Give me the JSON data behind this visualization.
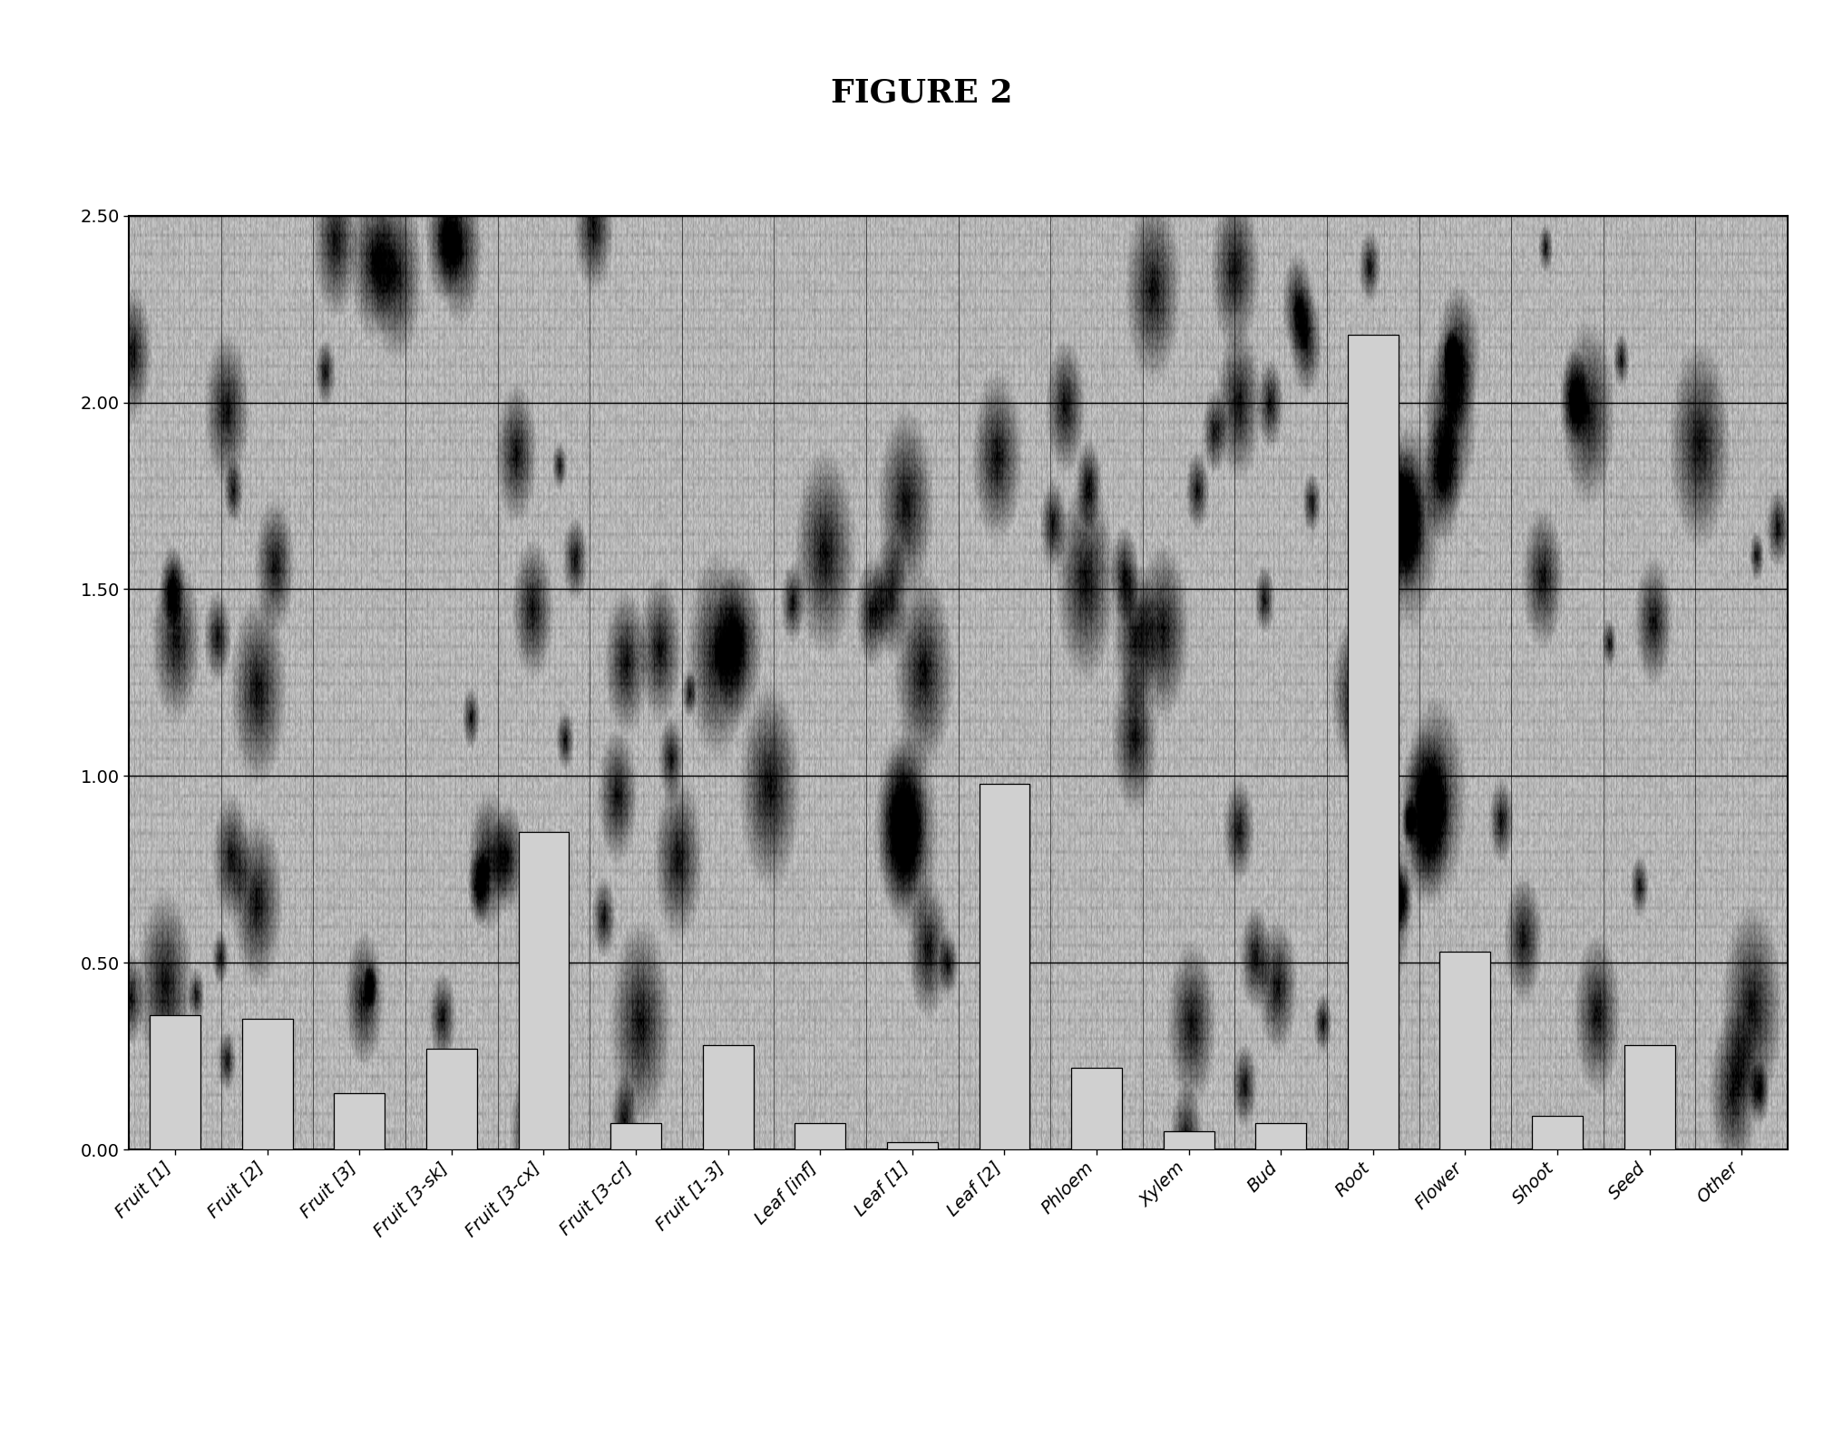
{
  "title": "FIGURE 2",
  "categories": [
    "Fruit [1]",
    "Fruit [2]",
    "Fruit [3]",
    "Fruit [3-sk]",
    "Fruit [3-cx]",
    "Fruit [3-cr]",
    "Fruit [1-3]",
    "Leaf [inf]",
    "Leaf [1]",
    "Leaf [2]",
    "Phloem",
    "Xylem",
    "Bud",
    "Root",
    "Flower",
    "Shoot",
    "Seed",
    "Other"
  ],
  "values": [
    0.36,
    0.35,
    0.15,
    0.27,
    0.85,
    0.07,
    0.28,
    0.07,
    0.02,
    0.98,
    0.22,
    0.05,
    0.07,
    2.18,
    0.53,
    0.09,
    0.28,
    0.0
  ],
  "ylim": [
    0.0,
    2.5
  ],
  "yticks": [
    0.0,
    0.5,
    1.0,
    1.5,
    2.0,
    2.5
  ],
  "bar_color": "#d0d0d0",
  "bar_edge_color": "#000000",
  "background_color": "#ffffff",
  "plot_bg_light": "#c8c8c8",
  "grid_color": "#000000",
  "title_fontsize": 26,
  "tick_fontsize": 14,
  "bar_width": 0.55,
  "fig_width": 20.32,
  "fig_height": 15.84,
  "dpi": 100
}
